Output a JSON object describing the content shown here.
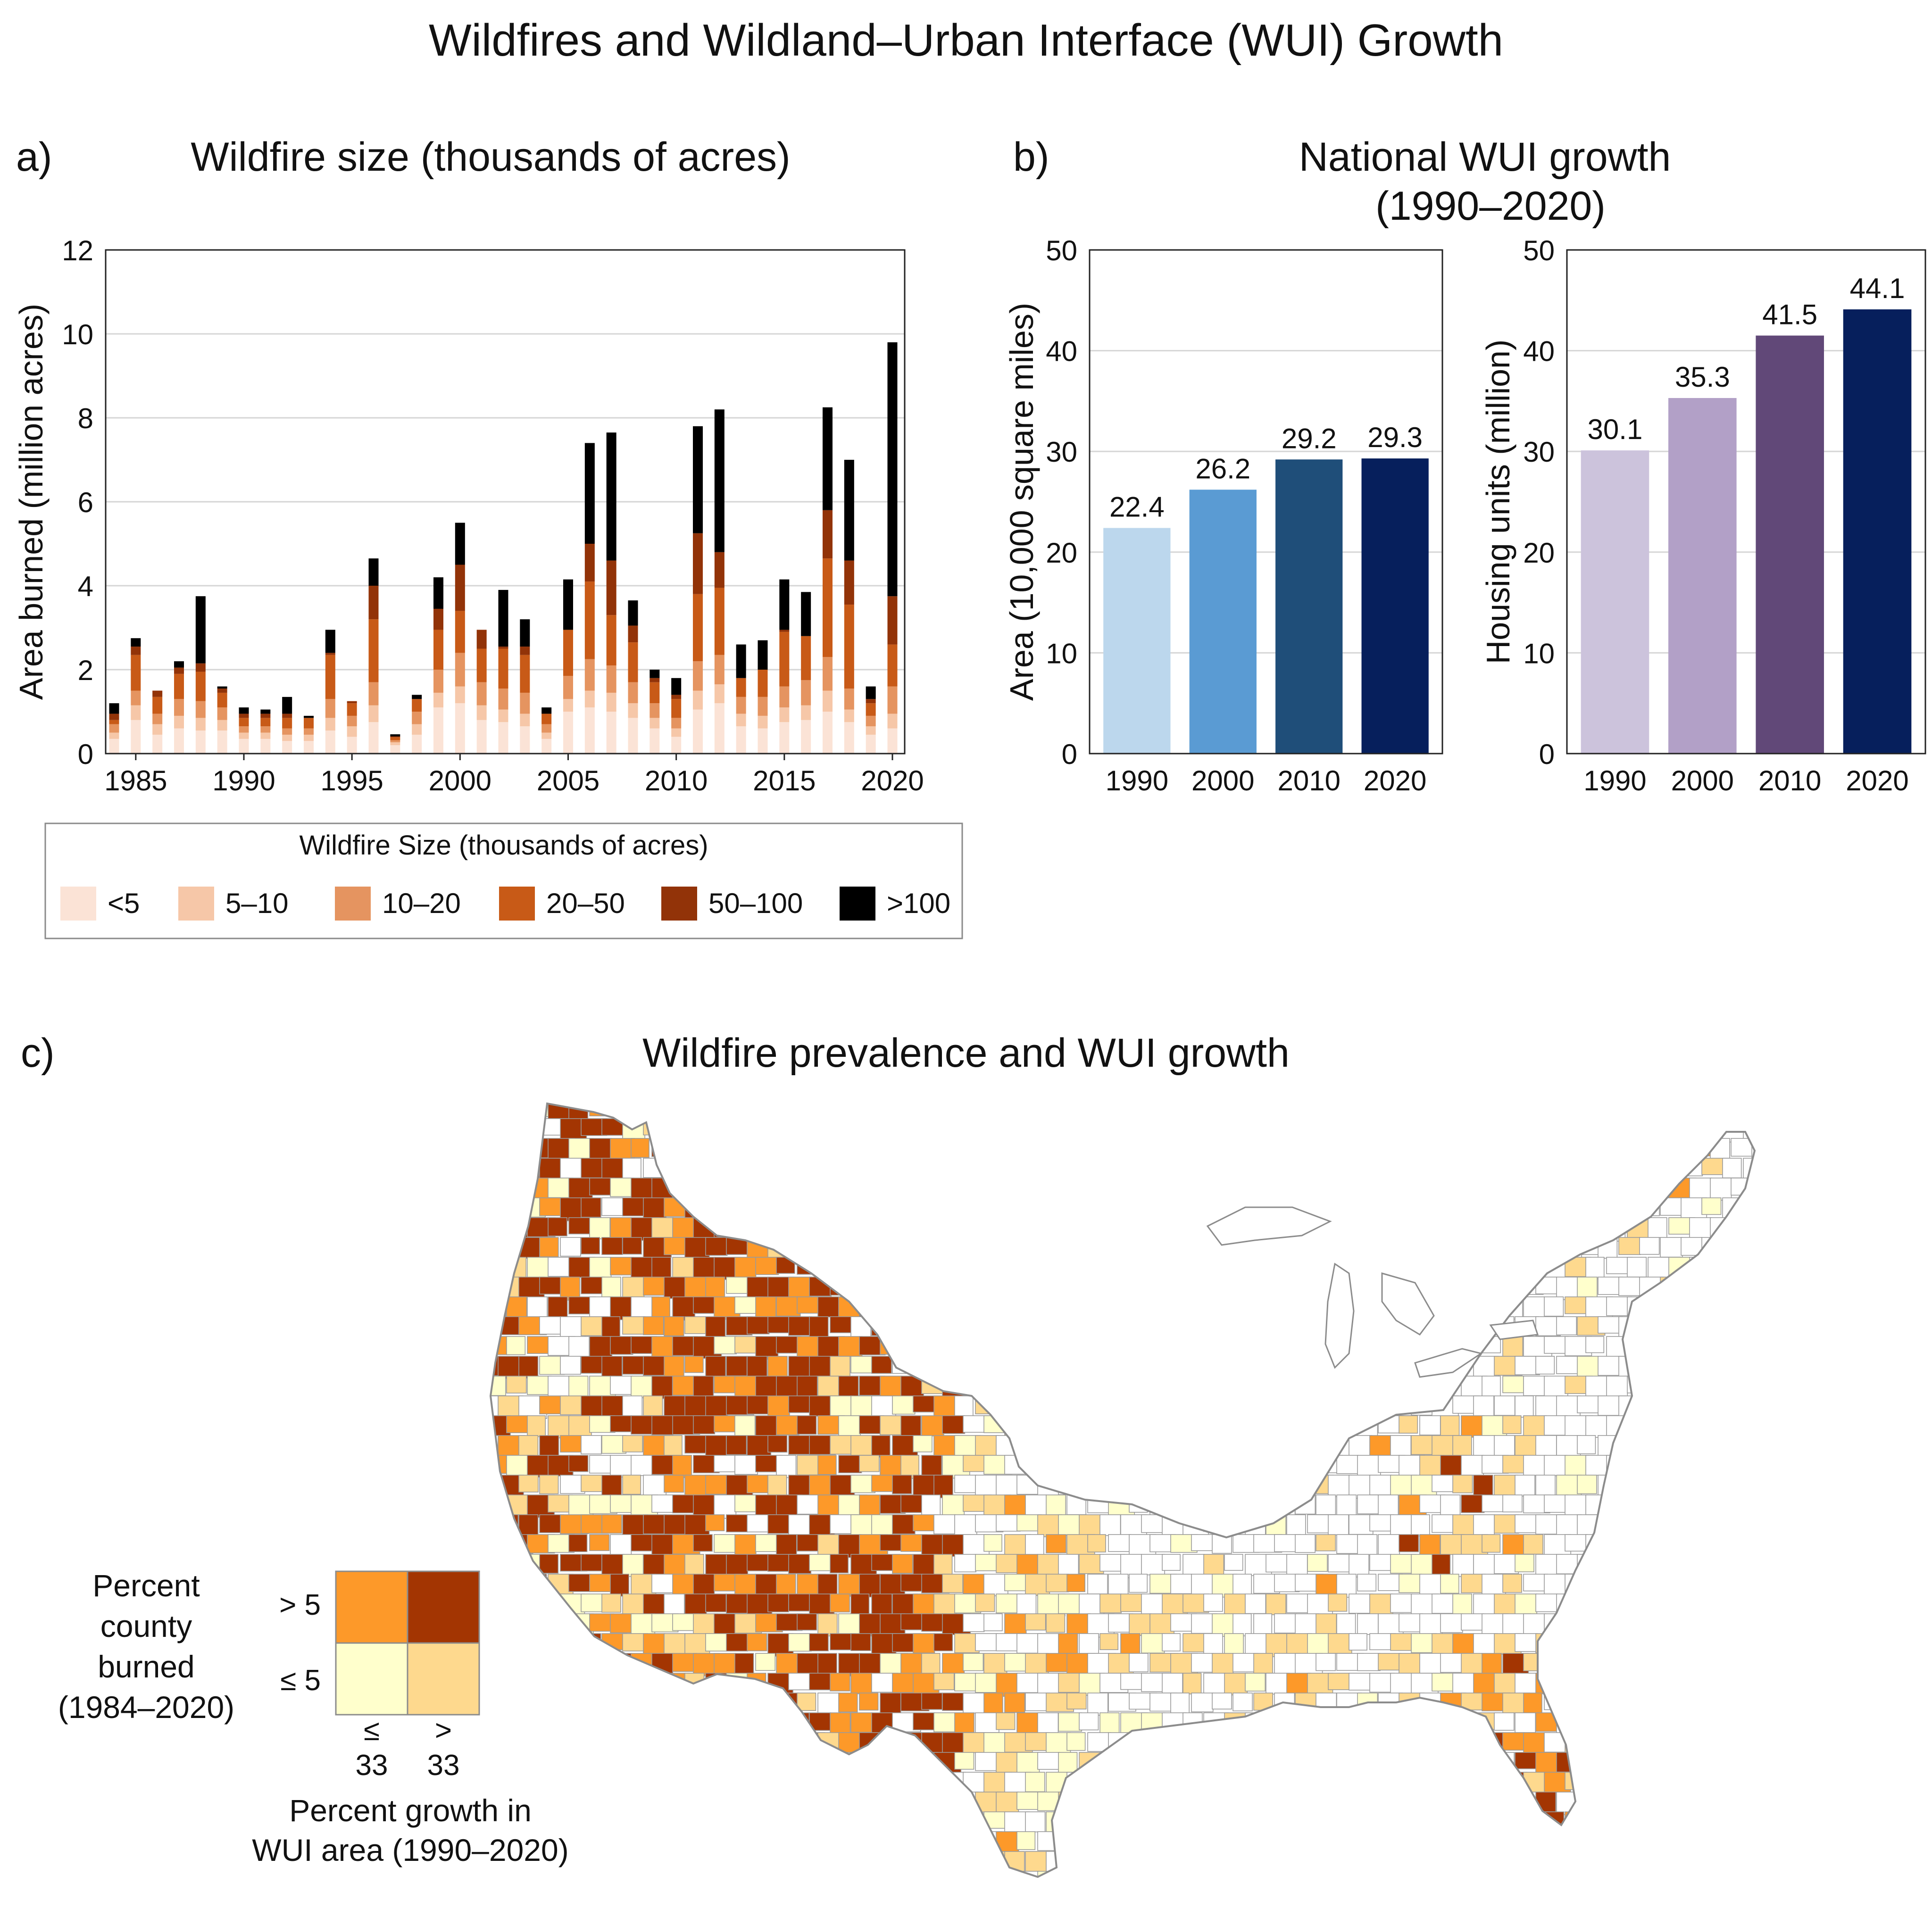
{
  "figure": {
    "title": "Wildfires and Wildland–Urban Interface (WUI) Growth"
  },
  "colors": {
    "fire_size": [
      "#fbe3d6",
      "#f6c7a8",
      "#e59460",
      "#c85a17",
      "#923308",
      "#000000"
    ],
    "wui_area": [
      "#bcd7ed",
      "#5a9bd3",
      "#1f4e79",
      "#061f5c"
    ],
    "wui_housing": [
      "#ccc3dc",
      "#b2a0c7",
      "#614878",
      "#061f5c"
    ],
    "map": {
      "low_low": "#ffffcc",
      "low_high": "#fed98e",
      "high_low": "#fd9929",
      "high_high": "#a33502",
      "none": "#ffffff",
      "borders": "#9a9a9a"
    }
  },
  "chart_data": [
    {
      "panel": "a)",
      "type": "bar",
      "stacked": true,
      "title": "Wildfire size (thousands of acres)",
      "xlabel": "",
      "ylabel": "Area burned (million acres)",
      "ylim": [
        0,
        12
      ],
      "yticks": [
        0,
        2,
        4,
        6,
        8,
        10,
        12
      ],
      "xtick_labels": [
        "1985",
        "1990",
        "1995",
        "2000",
        "2005",
        "2010",
        "2015",
        "2020"
      ],
      "grid": true,
      "categories": [
        1984,
        1985,
        1986,
        1987,
        1988,
        1989,
        1990,
        1991,
        1992,
        1993,
        1994,
        1995,
        1996,
        1997,
        1998,
        1999,
        2000,
        2001,
        2002,
        2003,
        2004,
        2005,
        2006,
        2007,
        2008,
        2009,
        2010,
        2011,
        2012,
        2013,
        2014,
        2015,
        2016,
        2017,
        2018,
        2019,
        2020
      ],
      "legend": {
        "title": "Wildfire Size (thousands of acres)",
        "placement": "bottom"
      },
      "series": [
        {
          "name": "<5",
          "values": [
            0.35,
            0.8,
            0.45,
            0.6,
            0.55,
            0.55,
            0.35,
            0.35,
            0.3,
            0.3,
            0.55,
            0.4,
            0.75,
            0.2,
            0.45,
            1.1,
            1.2,
            0.8,
            0.75,
            0.65,
            0.35,
            1.0,
            1.1,
            1.0,
            0.85,
            0.6,
            0.4,
            1.05,
            1.2,
            0.65,
            0.6,
            0.75,
            0.8,
            1.0,
            0.75,
            0.45,
            0.6
          ]
        },
        {
          "name": "5–10",
          "values": [
            0.15,
            0.35,
            0.25,
            0.3,
            0.3,
            0.25,
            0.15,
            0.15,
            0.15,
            0.15,
            0.3,
            0.25,
            0.4,
            0.07,
            0.25,
            0.35,
            0.4,
            0.35,
            0.3,
            0.3,
            0.15,
            0.3,
            0.4,
            0.45,
            0.35,
            0.25,
            0.2,
            0.45,
            0.45,
            0.3,
            0.3,
            0.35,
            0.35,
            0.5,
            0.3,
            0.2,
            0.35
          ]
        },
        {
          "name": "10–20",
          "values": [
            0.2,
            0.35,
            0.25,
            0.4,
            0.4,
            0.3,
            0.15,
            0.15,
            0.15,
            0.15,
            0.45,
            0.25,
            0.55,
            0.05,
            0.3,
            0.55,
            0.8,
            0.55,
            0.5,
            0.5,
            0.2,
            0.55,
            0.75,
            0.65,
            0.5,
            0.35,
            0.25,
            0.7,
            0.7,
            0.4,
            0.45,
            0.5,
            0.6,
            0.8,
            0.5,
            0.25,
            0.65
          ]
        },
        {
          "name": "20–50",
          "values": [
            0.1,
            0.85,
            0.4,
            0.6,
            0.7,
            0.35,
            0.2,
            0.2,
            0.25,
            0.25,
            1.05,
            0.3,
            1.5,
            0.07,
            0.3,
            0.95,
            1.0,
            0.8,
            0.95,
            0.9,
            0.25,
            1.1,
            1.85,
            1.2,
            0.95,
            0.5,
            0.45,
            1.6,
            1.6,
            0.45,
            0.65,
            1.3,
            1.05,
            2.35,
            2.0,
            0.3,
            1.0
          ]
        },
        {
          "name": "50–100",
          "values": [
            0.15,
            0.2,
            0.15,
            0.15,
            0.2,
            0.1,
            0.1,
            0.1,
            0.1,
            0.0,
            0.05,
            0.05,
            0.8,
            0.02,
            0.0,
            0.5,
            1.1,
            0.45,
            0.05,
            0.2,
            0.0,
            0.0,
            0.9,
            1.3,
            0.4,
            0.1,
            0.1,
            1.45,
            0.85,
            0.0,
            0.0,
            0.05,
            0.0,
            1.15,
            1.05,
            0.1,
            1.15
          ]
        },
        {
          "name": ">100",
          "values": [
            0.25,
            0.2,
            0.0,
            0.15,
            1.6,
            0.05,
            0.15,
            0.1,
            0.4,
            0.05,
            0.55,
            0.0,
            0.65,
            0.05,
            0.1,
            0.75,
            1.0,
            0.0,
            1.35,
            0.65,
            0.15,
            1.2,
            2.4,
            3.05,
            0.6,
            0.2,
            0.4,
            2.55,
            3.4,
            0.8,
            0.7,
            1.2,
            1.05,
            2.45,
            2.4,
            0.3,
            6.05
          ]
        }
      ]
    },
    {
      "panel": "b)",
      "type": "bar",
      "title": "National WUI growth\n(1990–2020)",
      "xlabel": "",
      "ylabel": "Area (10,000 square miles)",
      "ylim": [
        0,
        50
      ],
      "yticks": [
        0,
        10,
        20,
        30,
        40,
        50
      ],
      "grid": true,
      "categories": [
        "1990",
        "2000",
        "2010",
        "2020"
      ],
      "values": [
        22.4,
        26.2,
        29.2,
        29.3
      ],
      "data_labels": [
        "22.4",
        "26.2",
        "29.2",
        "29.3"
      ]
    },
    {
      "panel": "b)",
      "type": "bar",
      "xlabel": "",
      "ylabel": "Housing units (million)",
      "ylim": [
        0,
        50
      ],
      "yticks": [
        0,
        10,
        20,
        30,
        40,
        50
      ],
      "grid": true,
      "categories": [
        "1990",
        "2000",
        "2010",
        "2020"
      ],
      "values": [
        30.1,
        35.3,
        41.5,
        44.1
      ],
      "data_labels": [
        "30.1",
        "35.3",
        "41.5",
        "44.1"
      ]
    }
  ],
  "map": {
    "panel": "c)",
    "title": "Wildfire prevalence and WUI growth",
    "legend": {
      "y_title": "Percent\ncounty\nburned\n(1984–2020)",
      "y_high": "> 5",
      "y_low": "≤ 5",
      "x_low": "≤\n33",
      "x_high": ">\n33",
      "x_title": "Percent growth in\nWUI area (1990–2020)"
    }
  }
}
